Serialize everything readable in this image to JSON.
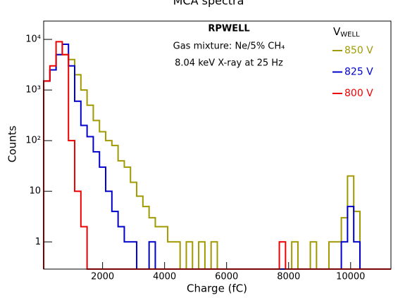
{
  "chart_data": {
    "type": "histogram",
    "title": "MCA spectra",
    "x_label": "Charge (fC)",
    "y_label": "Counts",
    "log_y": true,
    "annotations": [
      "RPWELL",
      "Gas mixture: Ne/5% CH₄",
      "8.04 keV X-ray at 25 Hz"
    ],
    "legend_title": {
      "main": "V",
      "sub": "WELL"
    },
    "legend_position": "upper right",
    "bins": [
      100,
      300,
      500,
      700,
      900,
      1100,
      1300,
      1500,
      1700,
      1900,
      2100,
      2300,
      2500,
      2700,
      2900,
      3100,
      3300,
      3500,
      3700,
      3900,
      4100,
      4300,
      4500,
      4700,
      4900,
      5100,
      5300,
      5500,
      5700,
      5900,
      6100,
      6300,
      6500,
      6700,
      6900,
      7100,
      7300,
      7500,
      7700,
      7900,
      8100,
      8300,
      8500,
      8700,
      8900,
      9100,
      9300,
      9500,
      9700,
      9900,
      10100,
      10300,
      10500,
      10700,
      10900,
      11100,
      11300
    ],
    "series": [
      {
        "name": "850 V",
        "color": "#a09a00",
        "values": [
          1500,
          2500,
          5000,
          5000,
          4000,
          2000,
          1000,
          500,
          250,
          150,
          100,
          80,
          40,
          30,
          15,
          8,
          5,
          3,
          2,
          2,
          1,
          1,
          0,
          1,
          0,
          1,
          0,
          1,
          0,
          0,
          0,
          0,
          0,
          0,
          0,
          0,
          0,
          0,
          0,
          0,
          1,
          0,
          0,
          1,
          0,
          0,
          1,
          1,
          3,
          20,
          4,
          0,
          0,
          0,
          0,
          0
        ]
      },
      {
        "name": "825 V",
        "color": "#0000cc",
        "values": [
          1500,
          2500,
          5000,
          8000,
          3000,
          600,
          200,
          120,
          60,
          30,
          10,
          4,
          2,
          1,
          1,
          0,
          0,
          1,
          0,
          0,
          0,
          0,
          0,
          0,
          0,
          0,
          0,
          0,
          0,
          0,
          0,
          0,
          0,
          0,
          0,
          0,
          0,
          0,
          0,
          0,
          0,
          0,
          0,
          0,
          0,
          0,
          0,
          0,
          1,
          5,
          1,
          0,
          0,
          0,
          0,
          0
        ]
      },
      {
        "name": "800 V",
        "color": "#ee0000",
        "values": [
          1500,
          3000,
          9000,
          5000,
          100,
          10,
          2,
          0,
          0,
          0,
          0,
          0,
          0,
          0,
          0,
          0,
          0,
          0,
          0,
          0,
          0,
          0,
          0,
          0,
          0,
          0,
          0,
          0,
          0,
          0,
          0,
          0,
          0,
          0,
          0,
          0,
          0,
          0,
          1,
          0,
          0,
          0,
          0,
          0,
          0,
          0,
          0,
          0,
          0,
          0,
          0,
          0,
          0,
          0,
          0,
          0
        ]
      }
    ],
    "xlim": [
      100,
      11300
    ],
    "ylim": [
      0.29,
      23000
    ],
    "xticks": [
      2000,
      4000,
      6000,
      8000,
      10000
    ],
    "yticks": [
      1,
      10,
      {
        "value": 100,
        "label": "10²"
      },
      {
        "value": 1000,
        "label": "10³"
      },
      {
        "value": 10000,
        "label": "10⁴"
      }
    ]
  }
}
